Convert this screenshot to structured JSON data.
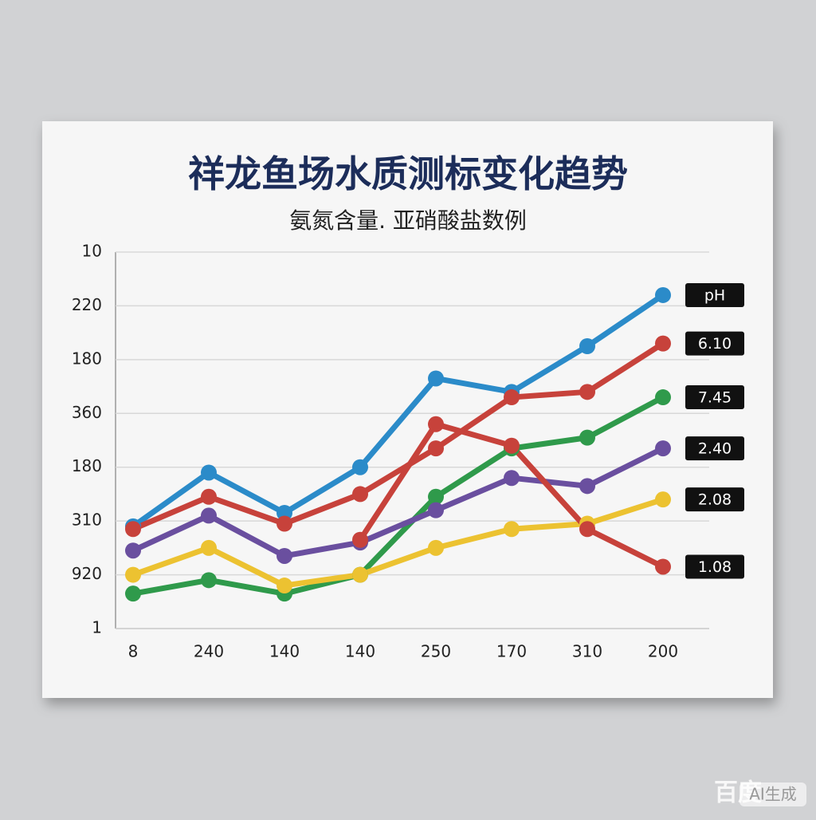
{
  "chart_data": {
    "type": "line",
    "title": "祥龙鱼场水质测标变化趋势",
    "subtitle": "氨氮含量. 亚硝酸盐数例",
    "categories": [
      "8",
      "240",
      "140",
      "140",
      "250",
      "170",
      "310",
      "200"
    ],
    "ylim": [
      0,
      7
    ],
    "yticks": [
      {
        "value": 0,
        "label": "1"
      },
      {
        "value": 1,
        "label": "920"
      },
      {
        "value": 2,
        "label": "310"
      },
      {
        "value": 3,
        "label": "180"
      },
      {
        "value": 4,
        "label": "360"
      },
      {
        "value": 5,
        "label": "180"
      },
      {
        "value": 6,
        "label": "220"
      },
      {
        "value": 7,
        "label": "10"
      }
    ],
    "grid": true,
    "series": [
      {
        "name": "pH",
        "color": "#2b8bc9",
        "values": [
          1.9,
          2.9,
          2.15,
          3.0,
          4.65,
          4.4,
          5.25,
          6.2
        ]
      },
      {
        "name": "6.10",
        "color": "#c7423b",
        "values": [
          1.85,
          2.45,
          1.95,
          2.5,
          3.35,
          4.3,
          4.4,
          5.3
        ]
      },
      {
        "name": "7.45",
        "color": "#2f9a4b",
        "values": [
          0.65,
          0.9,
          0.65,
          1.0,
          2.45,
          3.35,
          3.55,
          4.3
        ]
      },
      {
        "name": "2.40",
        "color": "#6a4f9f",
        "values": [
          1.45,
          2.1,
          1.35,
          1.6,
          2.2,
          2.8,
          2.65,
          3.35
        ]
      },
      {
        "name": "2.08",
        "color": "#ecc231",
        "values": [
          1.0,
          1.5,
          0.8,
          1.0,
          1.5,
          1.85,
          1.95,
          2.4
        ]
      },
      {
        "name": "1.08",
        "color": "#c7423b",
        "values": [
          null,
          null,
          null,
          1.65,
          3.8,
          3.4,
          1.85,
          1.15
        ]
      }
    ]
  },
  "watermark": {
    "brand": "百度",
    "badge": "AI生成"
  }
}
